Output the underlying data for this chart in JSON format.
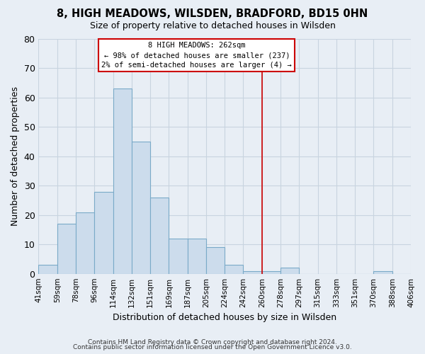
{
  "title": "8, HIGH MEADOWS, WILSDEN, BRADFORD, BD15 0HN",
  "subtitle": "Size of property relative to detached houses in Wilsden",
  "xlabel": "Distribution of detached houses by size in Wilsden",
  "ylabel": "Number of detached properties",
  "bar_color": "#ccdcec",
  "bar_edge_color": "#7aaac8",
  "bin_labels": [
    "41sqm",
    "59sqm",
    "78sqm",
    "96sqm",
    "114sqm",
    "132sqm",
    "151sqm",
    "169sqm",
    "187sqm",
    "205sqm",
    "224sqm",
    "242sqm",
    "260sqm",
    "278sqm",
    "297sqm",
    "315sqm",
    "333sqm",
    "351sqm",
    "370sqm",
    "388sqm",
    "406sqm"
  ],
  "bar_heights": [
    3,
    17,
    21,
    28,
    63,
    45,
    26,
    12,
    12,
    9,
    3,
    1,
    1,
    2,
    0,
    0,
    0,
    0,
    0,
    1,
    0
  ],
  "ylim": [
    0,
    80
  ],
  "yticks": [
    0,
    10,
    20,
    30,
    40,
    50,
    60,
    70,
    80
  ],
  "vline_color": "#cc0000",
  "annotation_title": "8 HIGH MEADOWS: 262sqm",
  "annotation_line1": "← 98% of detached houses are smaller (237)",
  "annotation_line2": "2% of semi-detached houses are larger (4) →",
  "annotation_box_color": "#ffffff",
  "annotation_box_edge": "#cc0000",
  "footer1": "Contains HM Land Registry data © Crown copyright and database right 2024.",
  "footer2": "Contains public sector information licensed under the Open Government Licence v3.0.",
  "background_color": "#e8eef5",
  "grid_color": "#c8d4e0"
}
